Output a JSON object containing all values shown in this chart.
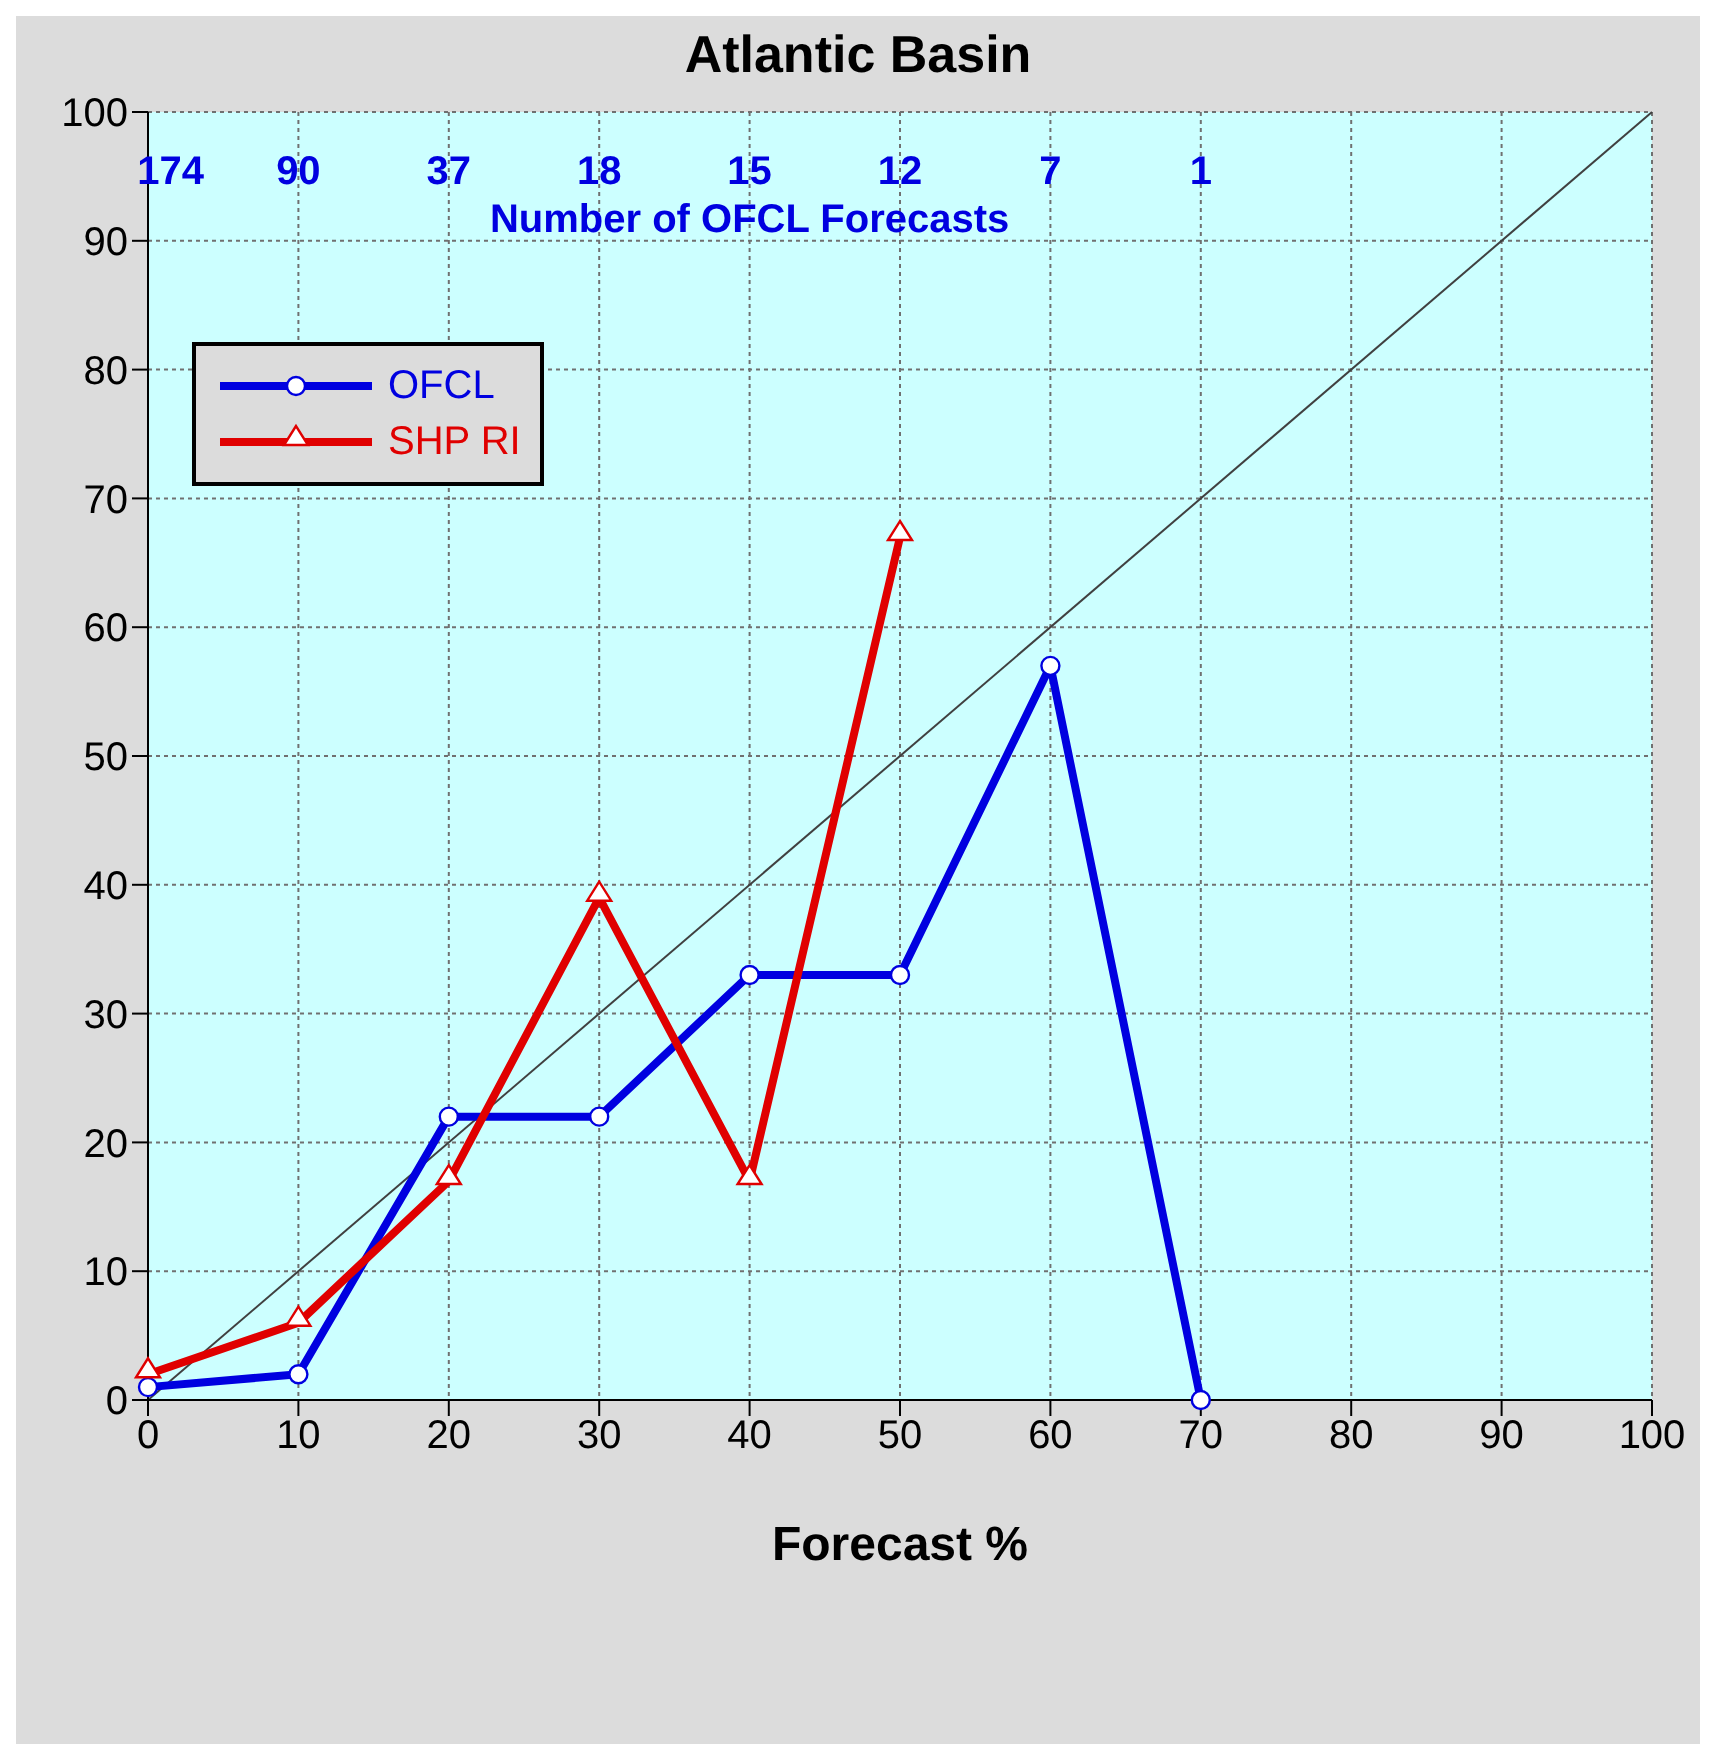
{
  "chart_data": {
    "type": "line",
    "title": "Atlantic Basin",
    "xlabel": "Forecast %",
    "xlim": [
      0,
      100
    ],
    "xticks": [
      0,
      10,
      20,
      30,
      40,
      50,
      60,
      70,
      80,
      90,
      100
    ],
    "ylim": [
      0,
      100
    ],
    "yticks": [
      0,
      10,
      20,
      30,
      40,
      50,
      60,
      70,
      80,
      90,
      100
    ],
    "grid": true,
    "legend": "top left",
    "series": [
      {
        "type": "line",
        "color": "#404040",
        "x": [
          0,
          100
        ],
        "values": [
          0,
          100
        ],
        "marker": "none"
      },
      {
        "name": "OFCL",
        "color": "#0000e0",
        "x": [
          0,
          10,
          20,
          30,
          40,
          50,
          60,
          70
        ],
        "values": [
          1,
          2,
          22,
          22,
          33,
          33,
          57,
          0
        ],
        "marker": "circle"
      },
      {
        "name": "SHP RI",
        "color": "#e00000",
        "x": [
          0,
          10,
          20,
          30,
          40,
          50
        ],
        "values": [
          2,
          6,
          17,
          39,
          17,
          67
        ],
        "marker": "triangle"
      }
    ],
    "annotations": [
      "174",
      "90",
      "37",
      "18",
      "15",
      "12",
      "7",
      "1",
      "Number of OFCL Forecasts"
    ]
  }
}
